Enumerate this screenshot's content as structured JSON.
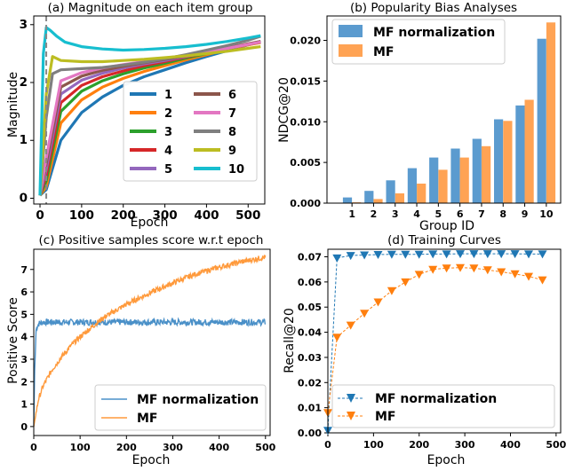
{
  "colors": {
    "blue": "#1f77b4",
    "orange": "#ff7f0e",
    "green": "#2ca02c",
    "red": "#d62728",
    "purple": "#9467bd",
    "brown": "#8c564b",
    "pink": "#e377c2",
    "gray": "#7f7f7f",
    "olive": "#bcbd22",
    "cyan": "#17becf",
    "bar_blue": "#5b9bcf",
    "bar_orange": "#ffa354",
    "line_blue": "#4a90c8",
    "line_orange": "#ff9a3c",
    "vline": "#888888"
  },
  "chart_data": [
    {
      "type": "line",
      "title": "(a) Magnitude on each item group",
      "xlabel": "Epoch",
      "ylabel": "Magnitude",
      "xlim": [
        -15,
        540
      ],
      "ylim": [
        -0.1,
        3.15
      ],
      "xticks": [
        0,
        100,
        200,
        300,
        400,
        500
      ],
      "xtick_labels": [
        "0",
        "100",
        "200",
        "300",
        "400",
        "500"
      ],
      "yticks": [
        0,
        1,
        2,
        3
      ],
      "ytick_labels": [
        "0",
        "1",
        "2",
        "3"
      ],
      "vline": 15,
      "legend_position": "center-right",
      "grid": false,
      "series": [
        {
          "name": "1",
          "color": "#1f77b4",
          "x": [
            0,
            15,
            50,
            100,
            150,
            200,
            250,
            300,
            350,
            400,
            450,
            500,
            530
          ],
          "y": [
            0.05,
            0.15,
            1.0,
            1.48,
            1.75,
            1.95,
            2.1,
            2.22,
            2.34,
            2.45,
            2.55,
            2.65,
            2.7
          ]
        },
        {
          "name": "2",
          "color": "#ff7f0e",
          "x": [
            0,
            15,
            50,
            100,
            150,
            200,
            250,
            300,
            350,
            400,
            450,
            500,
            530
          ],
          "y": [
            0.05,
            0.2,
            1.3,
            1.7,
            1.92,
            2.07,
            2.19,
            2.29,
            2.39,
            2.48,
            2.57,
            2.65,
            2.69
          ]
        },
        {
          "name": "3",
          "color": "#2ca02c",
          "x": [
            0,
            15,
            50,
            100,
            150,
            200,
            250,
            300,
            350,
            400,
            450,
            500,
            530
          ],
          "y": [
            0.05,
            0.3,
            1.5,
            1.85,
            2.03,
            2.15,
            2.25,
            2.33,
            2.42,
            2.5,
            2.58,
            2.66,
            2.7
          ]
        },
        {
          "name": "4",
          "color": "#d62728",
          "x": [
            0,
            15,
            50,
            100,
            150,
            200,
            250,
            300,
            350,
            400,
            450,
            500,
            530
          ],
          "y": [
            0.05,
            0.4,
            1.65,
            1.95,
            2.1,
            2.2,
            2.29,
            2.36,
            2.44,
            2.51,
            2.59,
            2.66,
            2.7
          ]
        },
        {
          "name": "5",
          "color": "#9467bd",
          "x": [
            0,
            15,
            50,
            100,
            150,
            200,
            250,
            300,
            350,
            400,
            450,
            500,
            530
          ],
          "y": [
            0.05,
            0.5,
            1.8,
            2.04,
            2.16,
            2.25,
            2.32,
            2.38,
            2.45,
            2.52,
            2.59,
            2.66,
            2.71
          ]
        },
        {
          "name": "6",
          "color": "#8c564b",
          "x": [
            0,
            15,
            50,
            100,
            150,
            200,
            250,
            300,
            350,
            400,
            450,
            500,
            530
          ],
          "y": [
            0.05,
            0.6,
            1.92,
            2.11,
            2.21,
            2.28,
            2.34,
            2.4,
            2.46,
            2.53,
            2.6,
            2.67,
            2.71
          ]
        },
        {
          "name": "7",
          "color": "#e377c2",
          "x": [
            0,
            15,
            50,
            100,
            150,
            200,
            250,
            300,
            350,
            400,
            450,
            500,
            530
          ],
          "y": [
            0.05,
            0.7,
            2.03,
            2.17,
            2.25,
            2.31,
            2.36,
            2.42,
            2.47,
            2.53,
            2.59,
            2.66,
            2.7
          ]
        },
        {
          "name": "8",
          "color": "#7f7f7f",
          "x": [
            0,
            15,
            30,
            50,
            100,
            150,
            200,
            250,
            300,
            350,
            400,
            450,
            500,
            530
          ],
          "y": [
            0.05,
            1.4,
            2.15,
            2.22,
            2.24,
            2.26,
            2.3,
            2.35,
            2.41,
            2.48,
            2.56,
            2.64,
            2.73,
            2.8
          ]
        },
        {
          "name": "9",
          "color": "#bcbd22",
          "x": [
            0,
            15,
            30,
            50,
            100,
            150,
            200,
            250,
            300,
            350,
            400,
            450,
            500,
            530
          ],
          "y": [
            0.05,
            1.8,
            2.45,
            2.38,
            2.36,
            2.36,
            2.38,
            2.4,
            2.43,
            2.46,
            2.5,
            2.54,
            2.59,
            2.62
          ]
        },
        {
          "name": "10",
          "color": "#17becf",
          "x": [
            0,
            8,
            15,
            25,
            40,
            60,
            100,
            150,
            200,
            250,
            300,
            350,
            400,
            450,
            500,
            530
          ],
          "y": [
            0.05,
            2.5,
            2.95,
            2.9,
            2.8,
            2.7,
            2.62,
            2.58,
            2.56,
            2.57,
            2.59,
            2.62,
            2.66,
            2.71,
            2.77,
            2.81
          ]
        }
      ]
    },
    {
      "type": "bar",
      "title": "(b) Popularity Bias Analyses",
      "xlabel": "Group ID",
      "ylabel": "NDCG@20",
      "categories": [
        "1",
        "2",
        "3",
        "4",
        "5",
        "6",
        "7",
        "8",
        "9",
        "10"
      ],
      "ylim": [
        0,
        0.023
      ],
      "yticks": [
        0,
        0.005,
        0.01,
        0.015,
        0.02
      ],
      "ytick_labels": [
        "0.000",
        "0.005",
        "0.010",
        "0.015",
        "0.020"
      ],
      "legend_position": "top-left",
      "grid": false,
      "series": [
        {
          "name": "MF normalization",
          "color": "#5b9bcf",
          "values": [
            0.0007,
            0.0015,
            0.0028,
            0.0043,
            0.0056,
            0.0067,
            0.0079,
            0.0103,
            0.012,
            0.0202
          ]
        },
        {
          "name": "MF",
          "color": "#ffa354",
          "values": [
            0.0001,
            0.0005,
            0.0012,
            0.0024,
            0.0041,
            0.0056,
            0.007,
            0.0101,
            0.0127,
            0.0222
          ]
        }
      ]
    },
    {
      "type": "line",
      "title": "(c) Positive samples score w.r.t epoch",
      "xlabel": "Epoch",
      "ylabel": "Positive Score",
      "xlim": [
        0,
        510
      ],
      "ylim": [
        -0.4,
        7.9
      ],
      "xticks": [
        0,
        100,
        200,
        300,
        400,
        500
      ],
      "xtick_labels": [
        "0",
        "100",
        "200",
        "300",
        "400",
        "500"
      ],
      "yticks": [
        0,
        1,
        2,
        3,
        4,
        5,
        6,
        7
      ],
      "ytick_labels": [
        "0",
        "1",
        "2",
        "3",
        "4",
        "5",
        "6",
        "7"
      ],
      "legend_position": "bottom-right",
      "grid": false,
      "series": [
        {
          "name": "MF normalization",
          "color": "#4a90c8",
          "x": [
            0,
            2,
            5,
            8,
            12,
            20,
            50,
            100,
            200,
            300,
            400,
            500
          ],
          "y": [
            0.0,
            2.5,
            4.3,
            4.5,
            4.6,
            4.65,
            4.65,
            4.65,
            4.65,
            4.65,
            4.65,
            4.65
          ]
        },
        {
          "name": "MF",
          "color": "#ff9a3c",
          "x": [
            0,
            5,
            10,
            20,
            40,
            60,
            80,
            100,
            150,
            200,
            250,
            300,
            350,
            400,
            450,
            500
          ],
          "y": [
            0.0,
            0.6,
            1.2,
            1.8,
            2.55,
            3.1,
            3.6,
            4.0,
            4.85,
            5.45,
            5.95,
            6.4,
            6.8,
            7.1,
            7.35,
            7.55
          ]
        }
      ]
    },
    {
      "type": "line",
      "title": "(d) Training Curves",
      "xlabel": "Epoch",
      "ylabel": "Recall@20",
      "xlim": [
        0,
        510
      ],
      "ylim": [
        0,
        0.073
      ],
      "xticks": [
        0,
        100,
        200,
        300,
        400,
        500
      ],
      "xtick_labels": [
        "0",
        "100",
        "200",
        "300",
        "400",
        "500"
      ],
      "yticks": [
        0,
        0.01,
        0.02,
        0.03,
        0.04,
        0.05,
        0.06,
        0.07
      ],
      "ytick_labels": [
        "0.00",
        "0.01",
        "0.02",
        "0.03",
        "0.04",
        "0.05",
        "0.06",
        "0.07"
      ],
      "legend_position": "bottom-right",
      "grid": false,
      "series": [
        {
          "name": "MF normalization",
          "color": "#1f77b4",
          "marker": "triangle-down",
          "x": [
            0,
            20,
            50,
            80,
            110,
            140,
            170,
            200,
            230,
            260,
            290,
            320,
            350,
            380,
            410,
            440,
            470
          ],
          "y": [
            0.001,
            0.0695,
            0.0705,
            0.0707,
            0.0709,
            0.071,
            0.071,
            0.071,
            0.0711,
            0.0711,
            0.0712,
            0.0712,
            0.0712,
            0.0712,
            0.0712,
            0.0711,
            0.0711
          ]
        },
        {
          "name": "MF",
          "color": "#ff7f0e",
          "marker": "triangle-down",
          "x": [
            0,
            20,
            50,
            80,
            110,
            140,
            170,
            200,
            230,
            260,
            290,
            320,
            350,
            380,
            410,
            440,
            470
          ],
          "y": [
            0.008,
            0.038,
            0.0428,
            0.0475,
            0.052,
            0.0565,
            0.06,
            0.063,
            0.065,
            0.0655,
            0.0657,
            0.0655,
            0.0648,
            0.064,
            0.0632,
            0.0622,
            0.0608
          ]
        }
      ]
    }
  ]
}
